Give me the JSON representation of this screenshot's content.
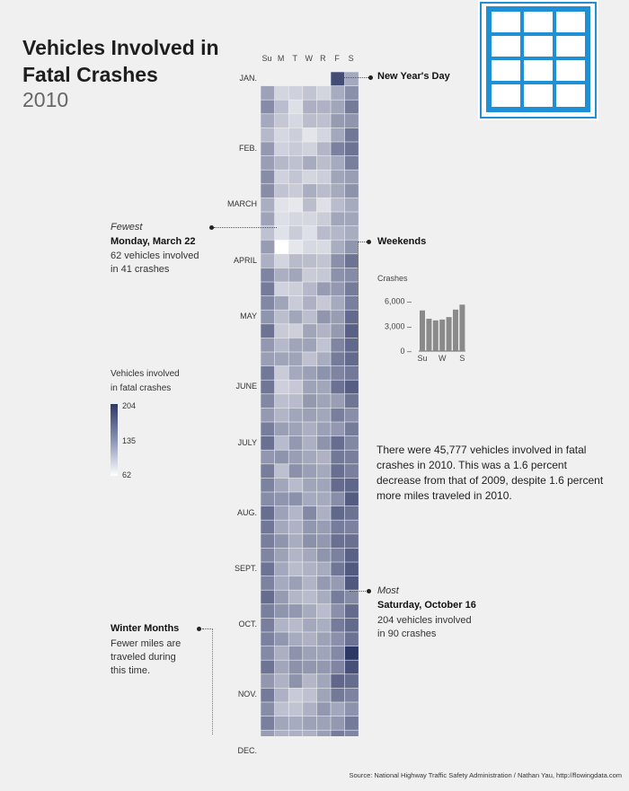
{
  "header": {
    "title": "Vehicles Involved in Fatal Crashes",
    "subtitle": "2010"
  },
  "day_headers": [
    "Su",
    "M",
    "T",
    "W",
    "R",
    "F",
    "S"
  ],
  "months": [
    "JAN.",
    "FEB.",
    "MARCH",
    "APRIL",
    "MAY",
    "JUNE",
    "JULY",
    "AUG.",
    "SEPT.",
    "OCT.",
    "NOV.",
    "DEC."
  ],
  "annotations": {
    "new_years": "New Year's Day",
    "weekends": "Weekends",
    "fewest_label": "Fewest",
    "fewest_date": "Monday, March 22",
    "fewest_line1": "62 vehicles involved",
    "fewest_line2": "in 41 crashes",
    "most_label": "Most",
    "most_date": "Saturday, October 16",
    "most_line1": "204 vehicles involved",
    "most_line2": "in 90 crashes",
    "winter_title": "Winter Months",
    "winter_line1": "Fewer miles are",
    "winter_line2": "traveled during",
    "winter_line3": "this time."
  },
  "stats_text": "There were 45,777 vehicles involved in fatal crashes in 2010. This was a 1.6 percent decrease from that of 2009, despite 1.6 percent more miles traveled in 2010.",
  "legend": {
    "title_line1": "Vehicles involved",
    "title_line2": "in fatal crashes",
    "max": "204",
    "mid": "135",
    "min": "62"
  },
  "source": "Source: National Highway Traffic Safety Administration / Nathan Yau, http://flowingdata.com",
  "icon": "grid-table-icon",
  "colors": {
    "dark": "#2e3866",
    "light": "#ffffff",
    "accent": "#1f8fd6",
    "bar": "#8a8a8a"
  },
  "chart_data": [
    {
      "type": "heatmap",
      "title": "Vehicles Involved in Fatal Crashes",
      "subtitle": "2010",
      "x_categories": [
        "Su",
        "M",
        "T",
        "W",
        "R",
        "F",
        "S"
      ],
      "rows": "weeks of 2010 (Jan through Dec)",
      "value_range": [
        62,
        204
      ],
      "highlights": [
        {
          "date": "2010-01-01",
          "label": "New Year's Day"
        },
        {
          "date": "2010-03-22",
          "label": "Fewest",
          "value": 62,
          "crashes": 41
        },
        {
          "date": "2010-10-16",
          "label": "Most",
          "value": 204,
          "crashes": 90
        }
      ],
      "weekday_means": [
        150,
        108,
        108,
        112,
        120,
        152,
        170
      ],
      "month_means": [
        112,
        118,
        110,
        125,
        130,
        132,
        138,
        140,
        135,
        140,
        125,
        112
      ],
      "legend": {
        "title": "Vehicles involved in fatal crashes",
        "ticks": [
          204,
          135,
          62
        ]
      }
    },
    {
      "type": "bar",
      "title": "",
      "ylabel": "Crashes",
      "categories": [
        "Su",
        "M",
        "T",
        "W",
        "R",
        "F",
        "S"
      ],
      "x_tick_labels": [
        "Su",
        "W",
        "S"
      ],
      "values": [
        4900,
        3900,
        3700,
        3800,
        4100,
        5000,
        5600
      ],
      "ylim": [
        0,
        6500
      ],
      "yticks": [
        0,
        3000,
        6000
      ],
      "ytick_labels": [
        "0",
        "3,000",
        "6,000"
      ]
    }
  ]
}
